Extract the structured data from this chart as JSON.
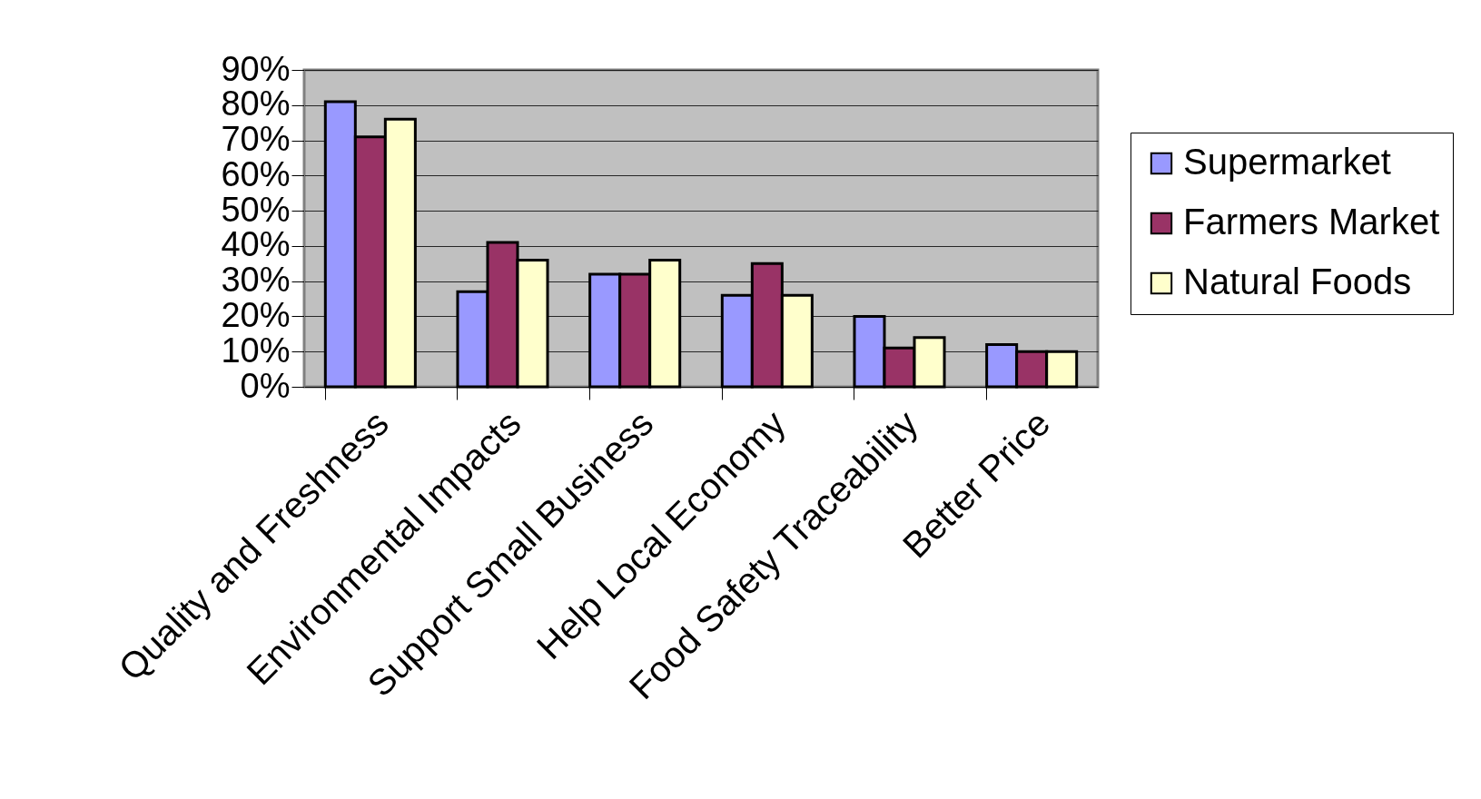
{
  "chart_data": {
    "type": "bar",
    "categories": [
      "Quality and Freshness",
      "Environmental Impacts",
      "Support Small Business",
      "Help Local Economy",
      "Food Safety Traceability",
      "Better Price"
    ],
    "series": [
      {
        "name": "Supermarket",
        "color": "#9999ff",
        "values": [
          81,
          27,
          32,
          26,
          20,
          12
        ]
      },
      {
        "name": "Farmers Market",
        "color": "#993366",
        "values": [
          71,
          41,
          32,
          35,
          11,
          10
        ]
      },
      {
        "name": "Natural Foods",
        "color": "#ffffcc",
        "values": [
          76,
          36,
          36,
          26,
          14,
          10
        ]
      }
    ],
    "ylim": [
      0,
      90
    ],
    "yticks": [
      {
        "value": 0,
        "label": "0%"
      },
      {
        "value": 10,
        "label": "10%"
      },
      {
        "value": 20,
        "label": "20%"
      },
      {
        "value": 30,
        "label": "30%"
      },
      {
        "value": 40,
        "label": "40%"
      },
      {
        "value": 50,
        "label": "50%"
      },
      {
        "value": 60,
        "label": "60%"
      },
      {
        "value": 70,
        "label": "70%"
      },
      {
        "value": 80,
        "label": "80%"
      },
      {
        "value": 90,
        "label": "90%"
      }
    ],
    "grid": "y",
    "legend": "right"
  }
}
